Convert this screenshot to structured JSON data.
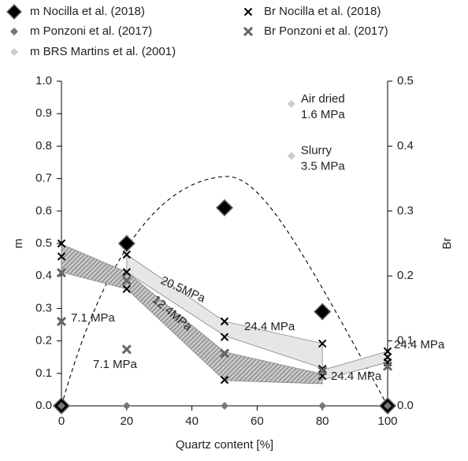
{
  "chart_data": {
    "type": "scatter",
    "xlabel": "Quartz content [%]",
    "ylabel": "m",
    "y2label": "Br",
    "xlim": [
      0,
      100
    ],
    "xticks": [
      0,
      20,
      40,
      60,
      80,
      100
    ],
    "ylim": [
      0,
      1
    ],
    "yticks": [
      {
        "value": 0,
        "label": "0.0"
      },
      0.1,
      0.2,
      0.3,
      0.4,
      0.5,
      0.6,
      0.7,
      0.8,
      0.9,
      {
        "value": 1,
        "label": "1.0"
      }
    ],
    "y2lim": [
      0,
      0.5
    ],
    "y2ticks": [
      {
        "value": 0,
        "label": "0.0"
      },
      0.1,
      0.2,
      0.3,
      0.4,
      0.5
    ],
    "series": [
      {
        "name": "m Nocilla et al. (2018)",
        "marker": "diamond-large",
        "color": "#000000",
        "x": [
          0,
          20,
          50,
          80,
          100
        ],
        "values": [
          0,
          0.5,
          0.61,
          0.29,
          0
        ]
      },
      {
        "name": "Br Nocilla et al. (2018)",
        "marker": "x",
        "color": "#000000",
        "axis": "y2",
        "x": [
          0,
          0,
          0,
          20,
          20,
          20,
          50,
          50,
          50,
          50,
          80,
          80,
          80,
          100,
          100,
          100
        ],
        "values": [
          0.25,
          0.23,
          0.205,
          0.233,
          0.206,
          0.18,
          0.13,
          0.106,
          0.08,
          0.04,
          0.096,
          0.057,
          0.046,
          0.084,
          0.075,
          0.067
        ]
      },
      {
        "name": "m Ponzoni et al. (2017)",
        "marker": "diamond-small",
        "color": "#777777",
        "x": [
          0,
          20,
          50,
          80,
          100
        ],
        "values": [
          0,
          0,
          0,
          0,
          0
        ]
      },
      {
        "name": "Br Ponzoni et al. (2017)",
        "marker": "x-bold",
        "color": "#666666",
        "axis": "y2",
        "x": [
          0,
          0,
          20,
          20,
          50,
          80,
          100
        ],
        "values": [
          0.205,
          0.13,
          0.193,
          0.087,
          0.081,
          0.054,
          0.061
        ]
      },
      {
        "name": "m BRS Martins et al. (2001)",
        "marker": "diamond-small",
        "color": "#cccccc",
        "x": [
          70.5,
          70.5
        ],
        "values": [
          0.93,
          0.77
        ],
        "point_labels": [
          [
            "Air dried",
            "1.6 MPa"
          ],
          [
            "Slurry",
            "3.5 MPa"
          ]
        ]
      }
    ],
    "bands": [
      {
        "label": "12.4MPa",
        "color": "#9a9a9a",
        "axis": "y2",
        "x": [
          0,
          20,
          50,
          80
        ],
        "upper": [
          0.249,
          0.206,
          0.083,
          0.049
        ],
        "lower": [
          0.206,
          0.18,
          0.039,
          0.034
        ]
      },
      {
        "label": "20.5MPa",
        "color": "#e6e6e6",
        "axis": "y2",
        "x": [
          20,
          50,
          80
        ],
        "upper": [
          0.233,
          0.13,
          0.096
        ],
        "lower": [
          0.206,
          0.108,
          0.058
        ]
      },
      {
        "color": "#e6e6e6",
        "axis": "y2",
        "x": [
          80,
          100
        ],
        "upper": [
          0.055,
          0.084
        ],
        "lower": [
          0.04,
          0.067
        ]
      }
    ],
    "annotations": [
      "7.1 MPa",
      "7.1 MPa",
      "24.4 MPa",
      "24.4 MPa",
      "24.4 MPa"
    ]
  }
}
